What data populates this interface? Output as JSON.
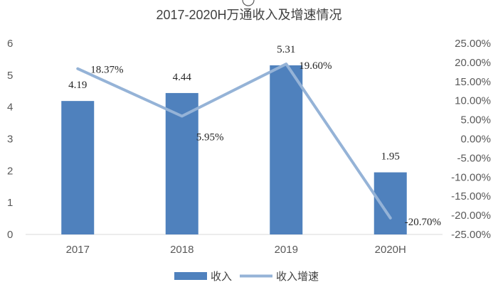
{
  "chart_data": {
    "type": "bar+line",
    "title": "2017-2020H万通收入及增速情况",
    "categories": [
      "2017",
      "2018",
      "2019",
      "2020H"
    ],
    "series": [
      {
        "name": "收入",
        "type": "bar",
        "axis": "left",
        "values": [
          4.19,
          4.44,
          5.31,
          1.95
        ],
        "labels": [
          "4.19",
          "4.44",
          "5.31",
          "1.95"
        ]
      },
      {
        "name": "收入增速",
        "type": "line",
        "axis": "right",
        "values": [
          18.37,
          5.95,
          19.6,
          -20.7
        ],
        "labels": [
          "18.37%",
          "5.95%",
          "19.60%",
          "-20.70%"
        ]
      }
    ],
    "left_axis": {
      "min": 0,
      "max": 6,
      "ticks": [
        "0",
        "1",
        "2",
        "3",
        "4",
        "5",
        "6"
      ]
    },
    "right_axis": {
      "min": -25,
      "max": 25,
      "ticks": [
        "25.00%",
        "20.00%",
        "15.00%",
        "10.00%",
        "5.00%",
        "0.00%",
        "-5.00%",
        "-10.00%",
        "-15.00%",
        "-20.00%",
        "-25.00%"
      ]
    },
    "colors": {
      "bar": "#4f81bd",
      "line": "#95b3d7"
    },
    "legend_position": "bottom"
  }
}
